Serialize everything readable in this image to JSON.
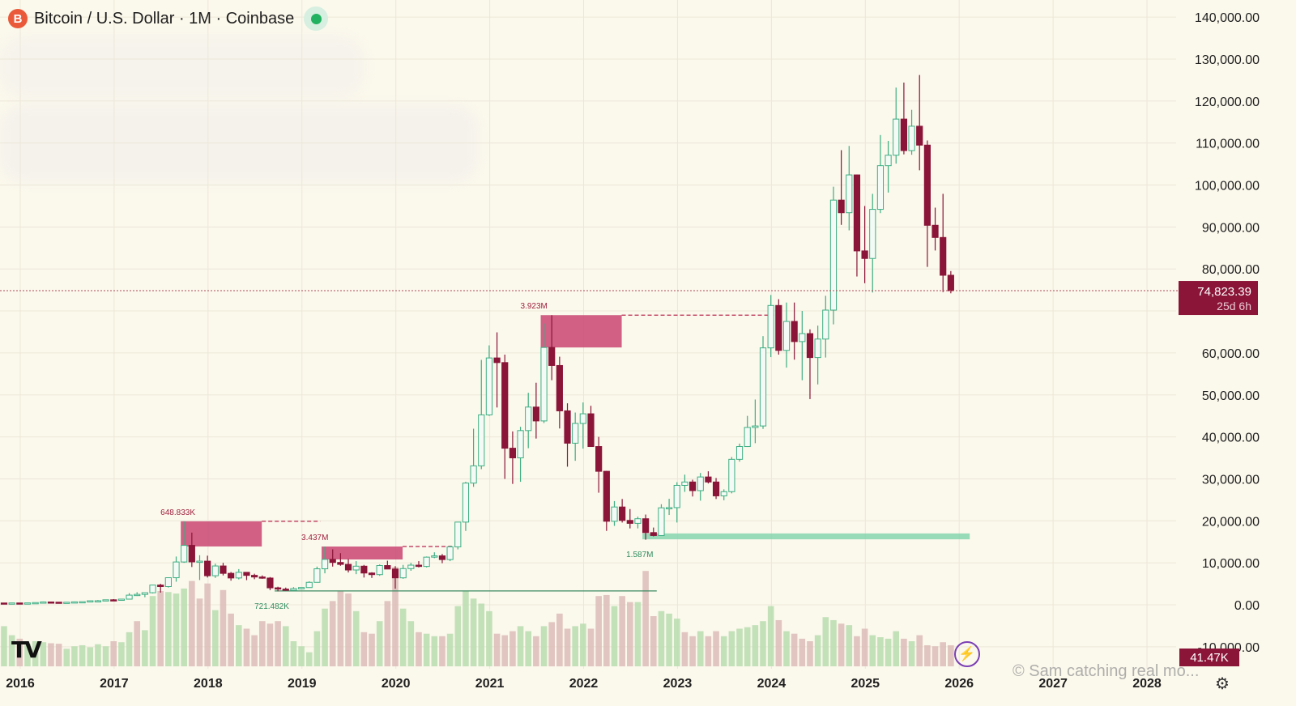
{
  "header": {
    "coin_symbol": "B",
    "symbol_text": "Bitcoin / U.S. Dollar · 1M · Coinbase"
  },
  "colors": {
    "background": "#fbf8ec",
    "up": "#3dae83",
    "down": "#8a1538",
    "vol_up": "#b9ddb0",
    "vol_down": "#dcbcb8",
    "zone_red": "#c94572",
    "zone_green": "#7fd3ad",
    "price_tag": "#8a1538"
  },
  "chart_data": {
    "type": "candlestick",
    "timeframe": "1M",
    "ylim": [
      -10000,
      140000
    ],
    "y_ticks": [
      {
        "value": 140000,
        "label": "140,000.00"
      },
      {
        "value": 130000,
        "label": "130,000.00"
      },
      {
        "value": 120000,
        "label": "120,000.00"
      },
      {
        "value": 110000,
        "label": "110,000.00"
      },
      {
        "value": 100000,
        "label": "100,000.00"
      },
      {
        "value": 90000,
        "label": "90,000.00"
      },
      {
        "value": 80000,
        "label": "80,000.00"
      },
      {
        "value": 60000,
        "label": "60,000.00"
      },
      {
        "value": 50000,
        "label": "50,000.00"
      },
      {
        "value": 40000,
        "label": "40,000.00"
      },
      {
        "value": 30000,
        "label": "30,000.00"
      },
      {
        "value": 20000,
        "label": "20,000.00"
      },
      {
        "value": 10000,
        "label": "10,000.00"
      },
      {
        "value": 0,
        "label": "0.00"
      },
      {
        "value": -10000,
        "label": "-10,000.00"
      }
    ],
    "x_ticks": [
      "2016",
      "2017",
      "2018",
      "2019",
      "2020",
      "2021",
      "2022",
      "2023",
      "2024",
      "2025",
      "2026",
      "2027",
      "2028"
    ],
    "current_price": {
      "value": 74823.39,
      "label": "74,823.39",
      "countdown": "25d 6h"
    },
    "volume_tag": "41.47K",
    "candles": [
      [
        "2016-01",
        430,
        440,
        350,
        370
      ],
      [
        "2016-02",
        370,
        440,
        365,
        437
      ],
      [
        "2016-03",
        437,
        440,
        400,
        416
      ],
      [
        "2016-04",
        416,
        470,
        410,
        448
      ],
      [
        "2016-05",
        448,
        540,
        440,
        530
      ],
      [
        "2016-06",
        530,
        780,
        520,
        673
      ],
      [
        "2016-07",
        673,
        700,
        600,
        624
      ],
      [
        "2016-08",
        624,
        630,
        530,
        574
      ],
      [
        "2016-09",
        574,
        620,
        570,
        609
      ],
      [
        "2016-10",
        609,
        720,
        600,
        700
      ],
      [
        "2016-11",
        700,
        750,
        680,
        745
      ],
      [
        "2016-12",
        745,
        975,
        740,
        960
      ],
      [
        "2017-01",
        960,
        1150,
        750,
        968
      ],
      [
        "2017-02",
        968,
        1200,
        920,
        1190
      ],
      [
        "2017-03",
        1190,
        1350,
        890,
        1079
      ],
      [
        "2017-04",
        1079,
        1400,
        1070,
        1348
      ],
      [
        "2017-05",
        1348,
        2760,
        1340,
        2300
      ],
      [
        "2017-06",
        2300,
        3000,
        2100,
        2480
      ],
      [
        "2017-07",
        2480,
        2900,
        1800,
        2875
      ],
      [
        "2017-08",
        2875,
        4800,
        2700,
        4700
      ],
      [
        "2017-09",
        4700,
        5000,
        2900,
        4340
      ],
      [
        "2017-10",
        4340,
        6400,
        4100,
        6450
      ],
      [
        "2017-11",
        6450,
        11500,
        5500,
        10200
      ],
      [
        "2017-12",
        10200,
        19891,
        10000,
        14156
      ],
      [
        "2018-01",
        14156,
        17200,
        9000,
        10221
      ],
      [
        "2018-02",
        10221,
        11800,
        5900,
        10397
      ],
      [
        "2018-03",
        10397,
        11700,
        6500,
        6926
      ],
      [
        "2018-04",
        6926,
        9800,
        6400,
        9246
      ],
      [
        "2018-05",
        9246,
        10000,
        7000,
        7494
      ],
      [
        "2018-06",
        7494,
        7800,
        5750,
        6391
      ],
      [
        "2018-07",
        6391,
        8500,
        6050,
        7730
      ],
      [
        "2018-08",
        7730,
        7760,
        5880,
        7011
      ],
      [
        "2018-09",
        7011,
        7400,
        6100,
        6626
      ],
      [
        "2018-10",
        6626,
        7000,
        6200,
        6371
      ],
      [
        "2018-11",
        6371,
        6600,
        3500,
        4041
      ],
      [
        "2018-12",
        4041,
        4300,
        3200,
        3742
      ],
      [
        "2019-01",
        3742,
        4100,
        3350,
        3457
      ],
      [
        "2019-02",
        3457,
        4200,
        3380,
        3854
      ],
      [
        "2019-03",
        3854,
        4100,
        3700,
        4105
      ],
      [
        "2019-04",
        4105,
        5600,
        4100,
        5350
      ],
      [
        "2019-05",
        5350,
        9100,
        5300,
        8574
      ],
      [
        "2019-06",
        8574,
        13880,
        7500,
        10817
      ],
      [
        "2019-07",
        10817,
        13200,
        9100,
        10085
      ],
      [
        "2019-08",
        10085,
        12300,
        9300,
        9630
      ],
      [
        "2019-09",
        9630,
        10900,
        7700,
        8294
      ],
      [
        "2019-10",
        8294,
        10400,
        7300,
        9199
      ],
      [
        "2019-11",
        9199,
        9500,
        6500,
        7569
      ],
      [
        "2019-12",
        7569,
        7750,
        6400,
        7193
      ],
      [
        "2020-01",
        7193,
        9600,
        6900,
        9350
      ],
      [
        "2020-02",
        9350,
        10500,
        8500,
        8523
      ],
      [
        "2020-03",
        8523,
        9200,
        3850,
        6424
      ],
      [
        "2020-04",
        6424,
        9500,
        6200,
        8624
      ],
      [
        "2020-05",
        8624,
        10000,
        8100,
        9446
      ],
      [
        "2020-06",
        9446,
        10400,
        8900,
        9135
      ],
      [
        "2020-07",
        9135,
        11500,
        8900,
        11351
      ],
      [
        "2020-08",
        11351,
        12500,
        11100,
        11655
      ],
      [
        "2020-09",
        11655,
        12100,
        9900,
        10779
      ],
      [
        "2020-10",
        10779,
        14100,
        10400,
        13805
      ],
      [
        "2020-11",
        13805,
        19500,
        13200,
        19700
      ],
      [
        "2020-12",
        19700,
        29300,
        17600,
        28990
      ],
      [
        "2021-01",
        28990,
        41950,
        28100,
        33100
      ],
      [
        "2021-02",
        33100,
        58350,
        32300,
        45240
      ],
      [
        "2021-03",
        45240,
        61800,
        45000,
        58800
      ],
      [
        "2021-04",
        58800,
        64900,
        47000,
        57700
      ],
      [
        "2021-05",
        57700,
        59600,
        30000,
        37300
      ],
      [
        "2021-06",
        37300,
        41300,
        28800,
        35000
      ],
      [
        "2021-07",
        35000,
        42400,
        29300,
        41500
      ],
      [
        "2021-08",
        41500,
        50500,
        37300,
        47100
      ],
      [
        "2021-09",
        47100,
        52900,
        39600,
        43800
      ],
      [
        "2021-10",
        43800,
        67000,
        43300,
        61300
      ],
      [
        "2021-11",
        61300,
        69000,
        53500,
        57000
      ],
      [
        "2021-12",
        57000,
        59100,
        42000,
        46200
      ],
      [
        "2022-01",
        46200,
        48000,
        32900,
        38500
      ],
      [
        "2022-02",
        38500,
        45800,
        34300,
        43200
      ],
      [
        "2022-03",
        43200,
        48200,
        37200,
        45500
      ],
      [
        "2022-04",
        45500,
        47400,
        37700,
        37700
      ],
      [
        "2022-05",
        37700,
        40000,
        26700,
        31800
      ],
      [
        "2022-06",
        31800,
        31900,
        17600,
        19900
      ],
      [
        "2022-07",
        19900,
        24700,
        18800,
        23300
      ],
      [
        "2022-08",
        23300,
        25200,
        19600,
        20100
      ],
      [
        "2022-09",
        20100,
        22800,
        18200,
        19400
      ],
      [
        "2022-10",
        19400,
        21000,
        18200,
        20500
      ],
      [
        "2022-11",
        20500,
        21500,
        15500,
        17200
      ],
      [
        "2022-12",
        17200,
        18400,
        16300,
        16500
      ],
      [
        "2023-01",
        16500,
        23950,
        16500,
        23100
      ],
      [
        "2023-02",
        23100,
        25250,
        21400,
        23150
      ],
      [
        "2023-03",
        23150,
        29200,
        19600,
        28450
      ],
      [
        "2023-04",
        28450,
        31000,
        26900,
        29250
      ],
      [
        "2023-05",
        29250,
        29800,
        25800,
        27200
      ],
      [
        "2023-06",
        27200,
        31400,
        24800,
        30450
      ],
      [
        "2023-07",
        30450,
        31800,
        28900,
        29250
      ],
      [
        "2023-08",
        29250,
        30200,
        25200,
        25950
      ],
      [
        "2023-09",
        25950,
        27500,
        24900,
        26950
      ],
      [
        "2023-10",
        26950,
        35200,
        26550,
        34650
      ],
      [
        "2023-11",
        34650,
        38400,
        34100,
        37700
      ],
      [
        "2023-12",
        37700,
        45000,
        37600,
        42250
      ],
      [
        "2024-01",
        42250,
        48900,
        38500,
        42600
      ],
      [
        "2024-02",
        42600,
        64000,
        41900,
        61200
      ],
      [
        "2024-03",
        61200,
        73800,
        59000,
        71300
      ],
      [
        "2024-04",
        71300,
        72800,
        59600,
        60600
      ],
      [
        "2024-05",
        60600,
        72000,
        56500,
        67500
      ],
      [
        "2024-06",
        67500,
        72000,
        58400,
        62700
      ],
      [
        "2024-07",
        62700,
        70000,
        53500,
        64600
      ],
      [
        "2024-08",
        64600,
        65600,
        49000,
        58900
      ],
      [
        "2024-09",
        58900,
        66500,
        52500,
        63300
      ],
      [
        "2024-10",
        63300,
        73600,
        58900,
        70200
      ],
      [
        "2024-11",
        70200,
        99600,
        66800,
        96400
      ],
      [
        "2024-12",
        96400,
        108300,
        90500,
        93400
      ],
      [
        "2025-01",
        93400,
        109300,
        89200,
        102400
      ],
      [
        "2025-02",
        102400,
        102500,
        78200,
        84300
      ],
      [
        "2025-03",
        84300,
        95000,
        76600,
        82500
      ],
      [
        "2025-04",
        82500,
        97900,
        74400,
        94200
      ],
      [
        "2025-05",
        94200,
        111900,
        93300,
        104600
      ],
      [
        "2025-06",
        104600,
        110500,
        98200,
        107100
      ],
      [
        "2025-07",
        107100,
        123200,
        105100,
        115700
      ],
      [
        "2025-08",
        115700,
        124400,
        107300,
        108200
      ],
      [
        "2025-09",
        108200,
        117900,
        107200,
        114000
      ],
      [
        "2025-10",
        114000,
        126200,
        103500,
        109500
      ],
      [
        "2025-11",
        109500,
        110600,
        80500,
        90400
      ],
      [
        "2025-12",
        90400,
        94600,
        84400,
        87500
      ],
      [
        "2026-01",
        87500,
        97900,
        74500,
        78500
      ],
      [
        "2026-02",
        78500,
        79500,
        74200,
        74823
      ]
    ],
    "volume": [
      [
        "up",
        80
      ],
      [
        "up",
        62
      ],
      [
        "down",
        55
      ],
      [
        "up",
        45
      ],
      [
        "up",
        50
      ],
      [
        "up",
        48
      ],
      [
        "down",
        46
      ],
      [
        "down",
        45
      ],
      [
        "up",
        35
      ],
      [
        "up",
        40
      ],
      [
        "up",
        42
      ],
      [
        "up",
        38
      ],
      [
        "up",
        44
      ],
      [
        "up",
        40
      ],
      [
        "down",
        50
      ],
      [
        "up",
        48
      ],
      [
        "up",
        68
      ],
      [
        "down",
        90
      ],
      [
        "up",
        72
      ],
      [
        "up",
        140
      ],
      [
        "down",
        150
      ],
      [
        "up",
        148
      ],
      [
        "up",
        145
      ],
      [
        "up",
        155
      ],
      [
        "down",
        170
      ],
      [
        "down",
        135
      ],
      [
        "down",
        165
      ],
      [
        "up",
        112
      ],
      [
        "down",
        152
      ],
      [
        "down",
        105
      ],
      [
        "up",
        82
      ],
      [
        "down",
        75
      ],
      [
        "down",
        62
      ],
      [
        "down",
        90
      ],
      [
        "down",
        85
      ],
      [
        "down",
        90
      ],
      [
        "up",
        80
      ],
      [
        "up",
        50
      ],
      [
        "up",
        40
      ],
      [
        "up",
        28
      ],
      [
        "up",
        70
      ],
      [
        "up",
        115
      ],
      [
        "down",
        130
      ],
      [
        "down",
        150
      ],
      [
        "down",
        145
      ],
      [
        "up",
        110
      ],
      [
        "down",
        68
      ],
      [
        "down",
        65
      ],
      [
        "up",
        90
      ],
      [
        "down",
        130
      ],
      [
        "down",
        198
      ],
      [
        "up",
        115
      ],
      [
        "up",
        90
      ],
      [
        "down",
        68
      ],
      [
        "up",
        65
      ],
      [
        "up",
        60
      ],
      [
        "down",
        60
      ],
      [
        "up",
        65
      ],
      [
        "up",
        120
      ],
      [
        "up",
        150
      ],
      [
        "up",
        135
      ],
      [
        "up",
        125
      ],
      [
        "up",
        110
      ],
      [
        "down",
        65
      ],
      [
        "down",
        62
      ],
      [
        "down",
        70
      ],
      [
        "up",
        80
      ],
      [
        "up",
        70
      ],
      [
        "down",
        60
      ],
      [
        "up",
        80
      ],
      [
        "down",
        88
      ],
      [
        "down",
        105
      ],
      [
        "down",
        75
      ],
      [
        "up",
        80
      ],
      [
        "up",
        85
      ],
      [
        "down",
        75
      ],
      [
        "down",
        140
      ],
      [
        "down",
        142
      ],
      [
        "up",
        120
      ],
      [
        "down",
        140
      ],
      [
        "down",
        128
      ],
      [
        "up",
        128
      ],
      [
        "down",
        190
      ],
      [
        "down",
        100
      ],
      [
        "up",
        110
      ],
      [
        "up",
        105
      ],
      [
        "up",
        95
      ],
      [
        "down",
        68
      ],
      [
        "down",
        60
      ],
      [
        "up",
        70
      ],
      [
        "down",
        60
      ],
      [
        "down",
        70
      ],
      [
        "up",
        60
      ],
      [
        "up",
        70
      ],
      [
        "up",
        75
      ],
      [
        "up",
        78
      ],
      [
        "up",
        82
      ],
      [
        "up",
        90
      ],
      [
        "up",
        120
      ],
      [
        "down",
        92
      ],
      [
        "up",
        70
      ],
      [
        "down",
        65
      ],
      [
        "down",
        55
      ],
      [
        "down",
        50
      ],
      [
        "up",
        62
      ],
      [
        "up",
        98
      ],
      [
        "up",
        92
      ],
      [
        "down",
        85
      ],
      [
        "up",
        82
      ],
      [
        "down",
        60
      ],
      [
        "down",
        75
      ],
      [
        "up",
        62
      ],
      [
        "up",
        58
      ],
      [
        "up",
        55
      ],
      [
        "up",
        70
      ],
      [
        "down",
        55
      ],
      [
        "up",
        50
      ],
      [
        "down",
        62
      ],
      [
        "down",
        42
      ],
      [
        "down",
        40
      ],
      [
        "down",
        48
      ],
      [
        "down",
        42
      ]
    ],
    "annotations": [
      {
        "label": "648.833K",
        "type": "supply",
        "top": 19891,
        "bottom": 13900,
        "x_start": "2017-12",
        "x_end": "2019-05"
      },
      {
        "label": "3.437M",
        "type": "supply",
        "top": 13880,
        "bottom": 10800,
        "x_start": "2019-06",
        "x_end": "2020-11"
      },
      {
        "label": "3.923M",
        "type": "supply",
        "top": 69000,
        "bottom": 61300,
        "x_start": "2021-10",
        "x_end": "2024-03"
      },
      {
        "label": "1.587M",
        "type": "demand",
        "top": 17000,
        "bottom": 15600,
        "x_start": "2022-11",
        "x_end": "2026-04"
      },
      {
        "label": "721.482K",
        "type": "level",
        "value": 3300,
        "x_start": "2018-12",
        "x_end": "2022-12"
      }
    ]
  },
  "watermark": "© Sam catching real mo...",
  "logo": "TV"
}
